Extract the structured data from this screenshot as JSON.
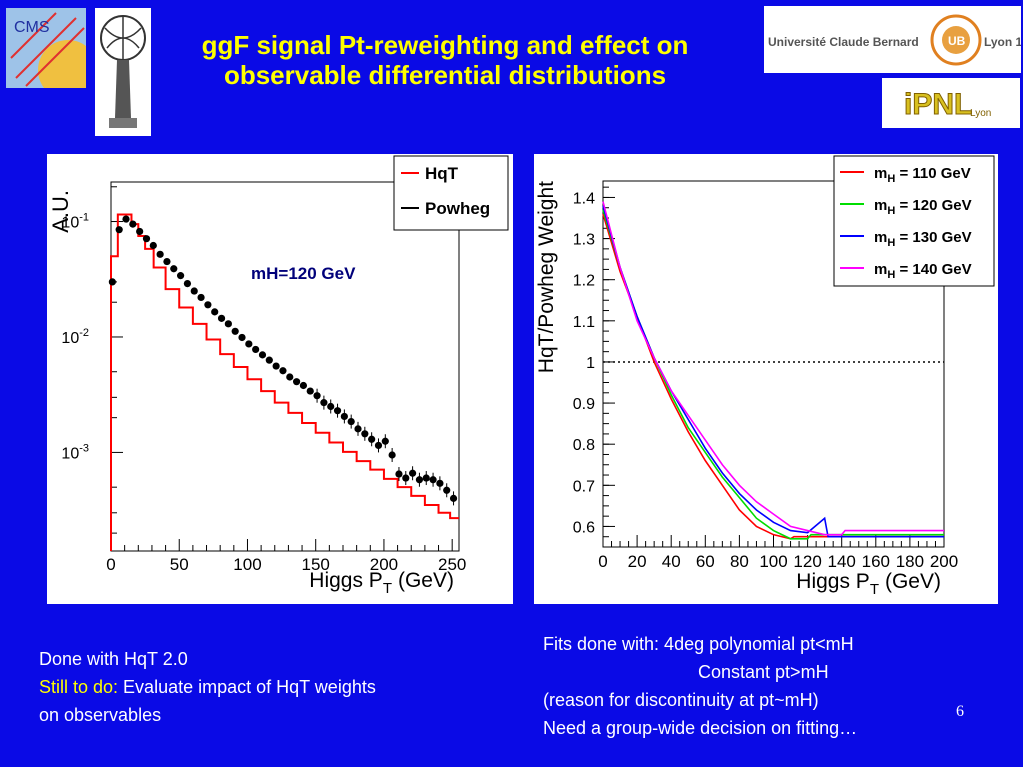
{
  "title_line1": "ggF signal Pt-reweighting and effect on",
  "title_line2": "observable differential distributions",
  "logos": {
    "cms": "CMS",
    "ucbl_left": "Université Claude Bernard",
    "ucbl_right": "Lyon 1",
    "ucbl_mark": "UB",
    "ipnl": "iPNL",
    "ipnl_sub": "Lyon"
  },
  "notes_left": {
    "line1": "Done with HqT 2.0",
    "still_label": "Still to do:",
    "still_text": " Evaluate impact of HqT weights",
    "line3": "on observables"
  },
  "notes_right": {
    "line1": "Fits done with: 4deg polynomial pt<mH",
    "line2": "Constant  pt>mH",
    "line3": "(reason for discontinuity at pt~mH)",
    "line4": "Need a group-wide decision on fitting…"
  },
  "page_number": "6",
  "chart_data": [
    {
      "type": "line",
      "ylabel": "A.U.",
      "xlabel_main": "Higgs P",
      "xlabel_sub": "T",
      "xlabel_unit": "(GeV)",
      "annotation": "mH=120 GeV",
      "x_ticks": [
        "0",
        "50",
        "100",
        "150",
        "200",
        "250"
      ],
      "y_ticks": [
        {
          "value": 0.1,
          "base": "10",
          "exp": "-1"
        },
        {
          "value": 0.01,
          "base": "10",
          "exp": "-2"
        },
        {
          "value": 0.001,
          "base": "10",
          "exp": "-3"
        }
      ],
      "xlim": [
        0,
        255
      ],
      "ylim_log": [
        0.00014,
        0.22
      ],
      "log_y": true,
      "legend_placement": "top-right",
      "series": [
        {
          "name": "HqT",
          "color": "#ff0000",
          "style": "histogram",
          "x": [
            2.5,
            7.5,
            12.5,
            17.5,
            22.5,
            27.5,
            35,
            45,
            55,
            65,
            75,
            85,
            95,
            105,
            115,
            125,
            135,
            145,
            155,
            165,
            175,
            185,
            195,
            205,
            215,
            225,
            235,
            245,
            252
          ],
          "y": [
            0.05,
            0.115,
            0.115,
            0.095,
            0.075,
            0.058,
            0.04,
            0.026,
            0.018,
            0.013,
            0.0095,
            0.0071,
            0.0055,
            0.0043,
            0.0034,
            0.0027,
            0.0022,
            0.0018,
            0.00148,
            0.00122,
            0.00101,
            0.00084,
            0.00071,
            0.00059,
            0.0005,
            0.00042,
            0.00035,
            0.0003,
            0.00027
          ]
        },
        {
          "name": "Powheg",
          "color": "#000000",
          "style": "markers",
          "x": [
            1,
            6,
            11,
            16,
            21,
            26,
            31,
            36,
            41,
            46,
            51,
            56,
            61,
            66,
            71,
            76,
            81,
            86,
            91,
            96,
            101,
            106,
            111,
            116,
            121,
            126,
            131,
            136,
            141,
            146,
            151,
            156,
            161,
            166,
            171,
            176,
            181,
            186,
            191,
            196,
            201,
            206,
            211,
            216,
            221,
            226,
            231,
            236,
            241,
            246,
            251
          ],
          "y": [
            0.03,
            0.085,
            0.105,
            0.095,
            0.082,
            0.071,
            0.062,
            0.052,
            0.045,
            0.039,
            0.034,
            0.029,
            0.025,
            0.022,
            0.019,
            0.0165,
            0.0145,
            0.013,
            0.0112,
            0.0099,
            0.0087,
            0.0078,
            0.007,
            0.0063,
            0.0056,
            0.0051,
            0.0045,
            0.0041,
            0.0038,
            0.0034,
            0.0031,
            0.0027,
            0.0025,
            0.0023,
            0.00205,
            0.00185,
            0.0016,
            0.00145,
            0.0013,
            0.00115,
            0.00125,
            0.00095,
            0.00065,
            0.0006,
            0.00066,
            0.00058,
            0.0006,
            0.00058,
            0.00054,
            0.00047,
            0.0004
          ]
        }
      ]
    },
    {
      "type": "line",
      "ylabel": "HqT/Powheg Weight",
      "xlabel_main": "Higgs P",
      "xlabel_sub": "T",
      "xlabel_unit": "(GeV)",
      "x_ticks": [
        "0",
        "20",
        "40",
        "60",
        "80",
        "100",
        "120",
        "140",
        "160",
        "180",
        "200"
      ],
      "y_ticks": [
        "0.6",
        "0.7",
        "0.8",
        "0.9",
        "1",
        "1.1",
        "1.2",
        "1.3",
        "1.4"
      ],
      "xlim": [
        0,
        200
      ],
      "ylim": [
        0.55,
        1.44
      ],
      "reference_line": 1,
      "legend_placement": "top-right",
      "series": [
        {
          "name_main": "m",
          "name_sub": "H",
          "name_rest": " = 110 GeV",
          "color": "#ff0000",
          "mH": 110,
          "x": [
            0,
            10,
            20,
            30,
            40,
            50,
            60,
            70,
            80,
            90,
            100,
            110,
            112,
            200
          ],
          "y": [
            1.36,
            1.22,
            1.11,
            1.0,
            0.91,
            0.83,
            0.76,
            0.7,
            0.64,
            0.6,
            0.58,
            0.57,
            0.575,
            0.575
          ]
        },
        {
          "name_main": "m",
          "name_sub": "H",
          "name_rest": " = 120 GeV",
          "color": "#00dd00",
          "mH": 120,
          "x": [
            0,
            10,
            20,
            30,
            40,
            50,
            60,
            70,
            80,
            90,
            100,
            110,
            120,
            122,
            200
          ],
          "y": [
            1.37,
            1.23,
            1.11,
            1.01,
            0.92,
            0.84,
            0.78,
            0.72,
            0.67,
            0.62,
            0.59,
            0.57,
            0.57,
            0.58,
            0.58
          ]
        },
        {
          "name_main": "m",
          "name_sub": "H",
          "name_rest": " = 130 GeV",
          "color": "#0000ff",
          "mH": 130,
          "x": [
            0,
            10,
            20,
            30,
            40,
            50,
            60,
            70,
            80,
            90,
            100,
            110,
            120,
            130,
            132,
            200
          ],
          "y": [
            1.38,
            1.23,
            1.11,
            1.01,
            0.93,
            0.86,
            0.79,
            0.73,
            0.68,
            0.64,
            0.61,
            0.59,
            0.585,
            0.62,
            0.575,
            0.575
          ]
        },
        {
          "name_main": "m",
          "name_sub": "H",
          "name_rest": " = 140 GeV",
          "color": "#ff00ff",
          "mH": 140,
          "x": [
            0,
            10,
            20,
            30,
            40,
            50,
            60,
            70,
            80,
            90,
            100,
            110,
            120,
            130,
            140,
            142,
            200
          ],
          "y": [
            1.39,
            1.23,
            1.1,
            1.01,
            0.93,
            0.87,
            0.81,
            0.75,
            0.7,
            0.66,
            0.63,
            0.6,
            0.59,
            0.58,
            0.58,
            0.59,
            0.59
          ]
        }
      ]
    }
  ]
}
